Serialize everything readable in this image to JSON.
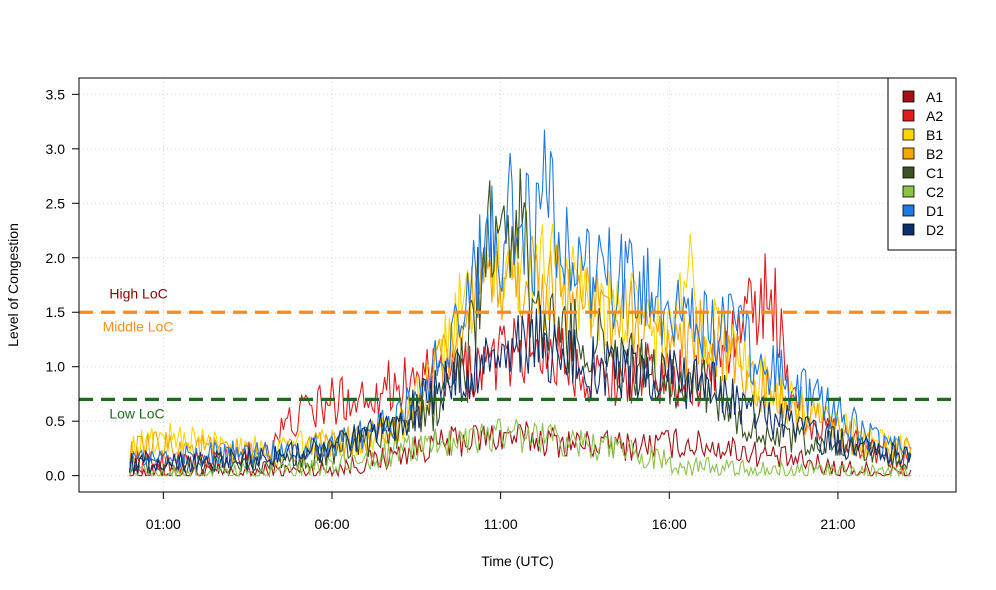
{
  "chart_data": {
    "type": "line",
    "title": "",
    "xlabel": "Time (UTC)",
    "ylabel": "Level of Congestion",
    "xlim": [
      -1.5,
      24.5
    ],
    "ylim": [
      -0.15,
      3.65
    ],
    "x_ticks": [
      {
        "value": 1,
        "label": "01:00"
      },
      {
        "value": 6,
        "label": "06:00"
      },
      {
        "value": 11,
        "label": "11:00"
      },
      {
        "value": 16,
        "label": "16:00"
      },
      {
        "value": 21,
        "label": "21:00"
      }
    ],
    "y_ticks": [
      {
        "value": 0,
        "label": "0.0"
      },
      {
        "value": 0.5,
        "label": "0.5"
      },
      {
        "value": 1,
        "label": "1.0"
      },
      {
        "value": 1.5,
        "label": "1.5"
      },
      {
        "value": 2,
        "label": "2.0"
      },
      {
        "value": 2.5,
        "label": "2.5"
      },
      {
        "value": 3,
        "label": "3.0"
      },
      {
        "value": 3.5,
        "label": "3.5"
      }
    ],
    "grid": true,
    "legend_position": "top-right",
    "reference_lines": [
      {
        "value": 1.5,
        "color": "#FF8C1A"
      },
      {
        "value": 0.7,
        "color": "#1E6B1E"
      }
    ],
    "annotations": [
      {
        "text": "High LoC",
        "x": -0.6,
        "y": 1.67,
        "color": "#8B0000"
      },
      {
        "text": "Middle LoC",
        "x": -0.8,
        "y": 1.37,
        "color": "#FF8C1A"
      },
      {
        "text": "Low LoC",
        "x": -0.6,
        "y": 0.57,
        "color": "#1E6B1E"
      }
    ],
    "series": [
      {
        "name": "A1",
        "color": "#A50F15",
        "x": [
          0,
          2,
          4,
          6,
          7,
          8,
          9,
          10,
          11,
          12,
          13,
          14,
          15,
          16,
          17,
          18,
          19,
          20,
          21,
          22,
          23.2
        ],
        "y": [
          0.02,
          0.02,
          0.03,
          0.06,
          0.12,
          0.2,
          0.28,
          0.33,
          0.36,
          0.34,
          0.3,
          0.28,
          0.27,
          0.3,
          0.28,
          0.24,
          0.18,
          0.12,
          0.07,
          0.04,
          0.02
        ]
      },
      {
        "name": "A2",
        "color": "#E31A1C",
        "x": [
          0,
          1,
          2,
          3,
          4,
          5,
          6,
          7,
          8,
          9,
          10,
          11,
          12,
          13,
          14,
          15,
          16,
          17,
          18,
          18.5,
          19,
          19.5,
          20,
          21,
          22,
          23.2
        ],
        "y": [
          0.14,
          0.12,
          0.13,
          0.16,
          0.25,
          0.55,
          0.68,
          0.75,
          0.85,
          0.9,
          0.95,
          1.1,
          1.2,
          1.05,
          0.9,
          0.95,
          0.9,
          0.9,
          1.3,
          1.55,
          1.75,
          0.95,
          0.55,
          0.35,
          0.25,
          0.15
        ]
      },
      {
        "name": "B1",
        "color": "#FFD700",
        "x": [
          0,
          1,
          2,
          3,
          4,
          5,
          6,
          7,
          8,
          9,
          10,
          11,
          12,
          13,
          14,
          15,
          16,
          16.6,
          17,
          18,
          19,
          20,
          21,
          22,
          23.2
        ],
        "y": [
          0.25,
          0.35,
          0.33,
          0.27,
          0.24,
          0.27,
          0.3,
          0.35,
          0.45,
          0.9,
          1.65,
          1.9,
          2.0,
          1.8,
          1.55,
          1.45,
          1.3,
          1.8,
          1.45,
          1.1,
          0.8,
          0.6,
          0.45,
          0.3,
          0.28
        ]
      },
      {
        "name": "B2",
        "color": "#F4A700",
        "x": [
          0,
          1,
          2,
          3,
          4,
          5,
          6,
          7,
          8,
          9,
          10,
          11,
          12,
          13,
          14,
          15,
          16,
          17,
          18,
          19,
          20,
          21,
          22,
          23.2
        ],
        "y": [
          0.22,
          0.28,
          0.26,
          0.22,
          0.2,
          0.24,
          0.28,
          0.34,
          0.42,
          0.85,
          1.5,
          1.8,
          1.85,
          1.7,
          1.5,
          1.4,
          1.2,
          1.3,
          1.0,
          0.75,
          0.55,
          0.4,
          0.28,
          0.22
        ]
      },
      {
        "name": "C1",
        "color": "#3B5323",
        "x": [
          0,
          1,
          2,
          3,
          4,
          5,
          6,
          7,
          8,
          9,
          10,
          10.6,
          11,
          11.6,
          12,
          13,
          14,
          15,
          16,
          17,
          18,
          19,
          20,
          21,
          22,
          23.2
        ],
        "y": [
          0.08,
          0.08,
          0.09,
          0.1,
          0.12,
          0.16,
          0.22,
          0.3,
          0.42,
          0.6,
          1.1,
          2.2,
          2.1,
          2.35,
          1.4,
          1.3,
          1.2,
          1.0,
          0.9,
          0.85,
          0.55,
          0.35,
          0.32,
          0.28,
          0.2,
          0.12
        ]
      },
      {
        "name": "C2",
        "color": "#8BC34A",
        "x": [
          0,
          2,
          4,
          6,
          7,
          8,
          9,
          10,
          11,
          12,
          13,
          14,
          15,
          16,
          17,
          18,
          19,
          20,
          21,
          22,
          23.2
        ],
        "y": [
          0.02,
          0.02,
          0.03,
          0.08,
          0.14,
          0.22,
          0.3,
          0.36,
          0.38,
          0.36,
          0.32,
          0.26,
          0.2,
          0.13,
          0.08,
          0.06,
          0.05,
          0.04,
          0.03,
          0.02,
          0.02
        ]
      },
      {
        "name": "D1",
        "color": "#1E78E6",
        "x": [
          0,
          1,
          2,
          3,
          4,
          5,
          6,
          7,
          8,
          9,
          10,
          10.8,
          11,
          11.3,
          12,
          12.3,
          13,
          14,
          15,
          16,
          17,
          18,
          19,
          20,
          21,
          22,
          23.2
        ],
        "y": [
          0.15,
          0.17,
          0.18,
          0.2,
          0.22,
          0.26,
          0.3,
          0.38,
          0.55,
          0.95,
          1.6,
          2.3,
          2.1,
          2.5,
          2.2,
          2.55,
          2.0,
          1.85,
          1.7,
          1.6,
          1.45,
          1.3,
          1.0,
          0.75,
          0.55,
          0.35,
          0.2
        ]
      },
      {
        "name": "D2",
        "color": "#0E2F6A",
        "x": [
          0,
          1,
          2,
          3,
          4,
          5,
          6,
          7,
          8,
          9,
          10,
          11,
          12,
          13,
          14,
          15,
          16,
          17,
          18,
          19,
          20,
          21,
          22,
          23.2
        ],
        "y": [
          0.12,
          0.13,
          0.14,
          0.15,
          0.17,
          0.2,
          0.25,
          0.35,
          0.5,
          0.75,
          0.95,
          1.05,
          1.25,
          1.1,
          0.95,
          0.95,
          0.9,
          0.85,
          0.7,
          0.55,
          0.4,
          0.3,
          0.22,
          0.15
        ]
      }
    ]
  }
}
